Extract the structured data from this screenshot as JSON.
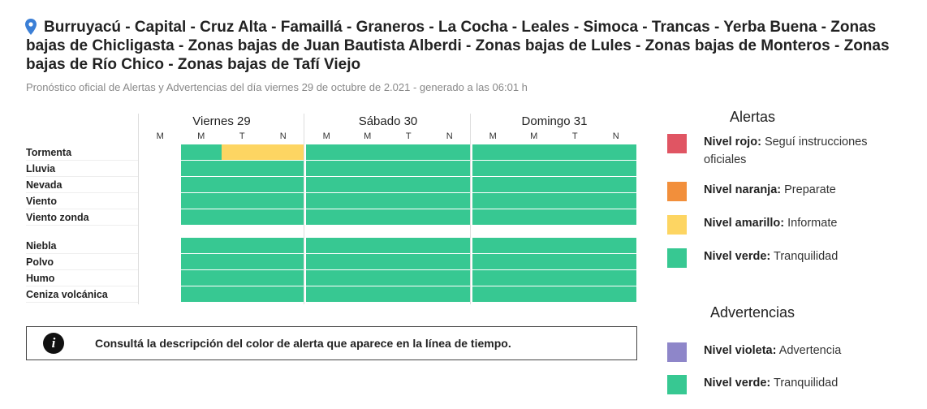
{
  "header": {
    "title": "Burruyacú - Capital - Cruz Alta - Famaillá - Graneros - La Cocha - Leales - Simoca - Trancas - Yerba Buena - Zonas bajas de Chicligasta - Zonas bajas de Juan Bautista Alberdi - Zonas bajas de Lules - Zonas bajas de Monteros - Zonas bajas de Río Chico - Zonas bajas de Tafí Viejo",
    "subtitle": "Pronóstico oficial de Alertas y Advertencias del día viernes 29 de octubre de 2.021 - generado a las 06:01 h"
  },
  "timeline": {
    "days": [
      {
        "name": "Viernes 29",
        "periods": [
          "M",
          "M",
          "T",
          "N"
        ]
      },
      {
        "name": "Sábado 30",
        "periods": [
          "M",
          "M",
          "T",
          "N"
        ]
      },
      {
        "name": "Domingo 31",
        "periods": [
          "M",
          "M",
          "T",
          "N"
        ]
      }
    ],
    "groups": [
      [
        {
          "label": "Tormenta",
          "cells": [
            null,
            "#37c892",
            "#fdd562",
            "#fdd562",
            "#37c892",
            "#37c892",
            "#37c892",
            "#37c892",
            "#37c892",
            "#37c892",
            "#37c892",
            "#37c892"
          ]
        },
        {
          "label": "Lluvia",
          "cells": [
            null,
            "#37c892",
            "#37c892",
            "#37c892",
            "#37c892",
            "#37c892",
            "#37c892",
            "#37c892",
            "#37c892",
            "#37c892",
            "#37c892",
            "#37c892"
          ]
        },
        {
          "label": "Nevada",
          "cells": [
            null,
            "#37c892",
            "#37c892",
            "#37c892",
            "#37c892",
            "#37c892",
            "#37c892",
            "#37c892",
            "#37c892",
            "#37c892",
            "#37c892",
            "#37c892"
          ]
        },
        {
          "label": "Viento",
          "cells": [
            null,
            "#37c892",
            "#37c892",
            "#37c892",
            "#37c892",
            "#37c892",
            "#37c892",
            "#37c892",
            "#37c892",
            "#37c892",
            "#37c892",
            "#37c892"
          ]
        },
        {
          "label": "Viento zonda",
          "cells": [
            null,
            "#37c892",
            "#37c892",
            "#37c892",
            "#37c892",
            "#37c892",
            "#37c892",
            "#37c892",
            "#37c892",
            "#37c892",
            "#37c892",
            "#37c892"
          ]
        }
      ],
      [
        {
          "label": "Niebla",
          "cells": [
            null,
            "#37c892",
            "#37c892",
            "#37c892",
            "#37c892",
            "#37c892",
            "#37c892",
            "#37c892",
            "#37c892",
            "#37c892",
            "#37c892",
            "#37c892"
          ]
        },
        {
          "label": "Polvo",
          "cells": [
            null,
            "#37c892",
            "#37c892",
            "#37c892",
            "#37c892",
            "#37c892",
            "#37c892",
            "#37c892",
            "#37c892",
            "#37c892",
            "#37c892",
            "#37c892"
          ]
        },
        {
          "label": "Humo",
          "cells": [
            null,
            "#37c892",
            "#37c892",
            "#37c892",
            "#37c892",
            "#37c892",
            "#37c892",
            "#37c892",
            "#37c892",
            "#37c892",
            "#37c892",
            "#37c892"
          ]
        },
        {
          "label": "Ceniza volcánica",
          "cells": [
            null,
            "#37c892",
            "#37c892",
            "#37c892",
            "#37c892",
            "#37c892",
            "#37c892",
            "#37c892",
            "#37c892",
            "#37c892",
            "#37c892",
            "#37c892"
          ]
        }
      ]
    ]
  },
  "info": {
    "icon": "i",
    "text": "Consultá la descripción del color de alerta que aparece en la línea de tiempo."
  },
  "legend": [
    {
      "title": "Alertas",
      "items": [
        {
          "level": "Nivel rojo:",
          "text": "Seguí instrucciones oficiales",
          "color": "#e05563"
        },
        {
          "level": "Nivel naranja:",
          "text": "Preparate",
          "color": "#f28f3b"
        },
        {
          "level": "Nivel amarillo:",
          "text": "Informate",
          "color": "#fdd562"
        },
        {
          "level": "Nivel verde:",
          "text": "Tranquilidad",
          "color": "#37c892"
        }
      ]
    },
    {
      "title": "Advertencias",
      "items": [
        {
          "level": "Nivel violeta:",
          "text": "Advertencia",
          "color": "#8e86c9"
        },
        {
          "level": "Nivel verde:",
          "text": "Tranquilidad",
          "color": "#37c892"
        }
      ]
    }
  ]
}
